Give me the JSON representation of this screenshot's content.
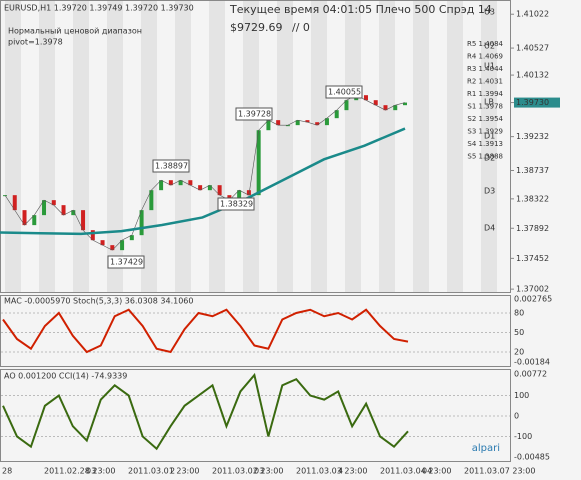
{
  "header": {
    "symbol": "EURUSD,H1  1.39720 1.39749 1.39720 1.39730",
    "indicator_name": "Нормальный ценовой диапазон",
    "pivot": "pivot=1.3978",
    "status": "Текущее время 04:01:05 Плечо 500 Спрэд 14",
    "balance": "$9729.69",
    "extra": "// 0"
  },
  "levels": [
    "U3",
    "U2",
    "U1",
    "LB",
    "D1",
    "D2",
    "D3",
    "D4"
  ],
  "pivots": [
    "R5 1.4084",
    "R4 1.4069",
    "R3 1.4044",
    "R2 1.4031",
    "R1 1.3994",
    "S1 1.3978",
    "S2 1.3954",
    "S3 1.3929",
    "S4 1.3913",
    "S5 1.3888"
  ],
  "annotations": [
    "1.39728",
    "1.40055",
    "1.38897",
    "1.38329",
    "1.37429"
  ],
  "main_chart": {
    "ylim": [
      1.3696,
      1.4123
    ],
    "yticks": [
      1.41022,
      1.40527,
      1.40132,
      {
        "value": 1.3973,
        "label": "1.39730"
      },
      1.39232,
      1.38737,
      1.38322,
      1.37892,
      1.37452,
      1.37002
    ],
    "close": [
      1.38376,
      1.38157,
      1.37938,
      1.38084,
      1.38303,
      1.3823,
      1.38084,
      1.38157,
      1.37864,
      1.37718,
      1.37645,
      1.37572,
      1.37718,
      1.37791,
      1.38157,
      1.38449,
      1.38595,
      1.38522,
      1.38595,
      1.38522,
      1.38449,
      1.38522,
      1.38376,
      1.38303,
      1.38449,
      1.38376,
      1.39326,
      1.39473,
      1.394,
      1.394,
      1.39473,
      1.39443,
      1.394,
      1.39502,
      1.39619,
      1.39765,
      1.39838,
      1.39765,
      1.39692,
      1.39619,
      1.39692,
      1.3973
    ],
    "ma": [
      1.3783,
      1.3782,
      1.3781,
      1.3785,
      1.3794,
      1.3805,
      1.383,
      1.386,
      1.389,
      1.391,
      1.3935
    ]
  },
  "osc1": {
    "label": "MAC -0.0005970  Stoch(5,3,3) 36.0308 34.1060",
    "top": "0.002765",
    "bottom": "-0.00184",
    "ylim": [
      0,
      100
    ],
    "yticks": [
      80,
      50,
      20
    ],
    "stoch": [
      70,
      40,
      25,
      60,
      80,
      45,
      20,
      30,
      75,
      85,
      60,
      25,
      20,
      55,
      80,
      75,
      85,
      60,
      30,
      25,
      70,
      80,
      85,
      75,
      80,
      70,
      85,
      60,
      40,
      36
    ]
  },
  "osc2": {
    "label": "AO 0.001200  CCI(14) -74.9339",
    "top": "0.00772",
    "bottom": "-0.00485",
    "ylim": [
      -215,
      215
    ],
    "yticks": [
      100,
      0,
      -100
    ],
    "cci": [
      50,
      -100,
      -150,
      50,
      100,
      -50,
      -120,
      80,
      150,
      100,
      -100,
      -160,
      -50,
      50,
      100,
      150,
      -50,
      120,
      200,
      -100,
      150,
      180,
      100,
      80,
      120,
      -50,
      60,
      -100,
      -150,
      -75
    ]
  },
  "time_axis": [
    "28",
    "2011.02.28 23:00",
    "03",
    "2011.03.01 23:00",
    "2",
    "2011.03.02 23:00",
    "03",
    "2011.03.03 23:00",
    "4",
    "2011.03.04 23:00",
    "04",
    "2011.03.07 23:00"
  ],
  "logo": "alpari"
}
